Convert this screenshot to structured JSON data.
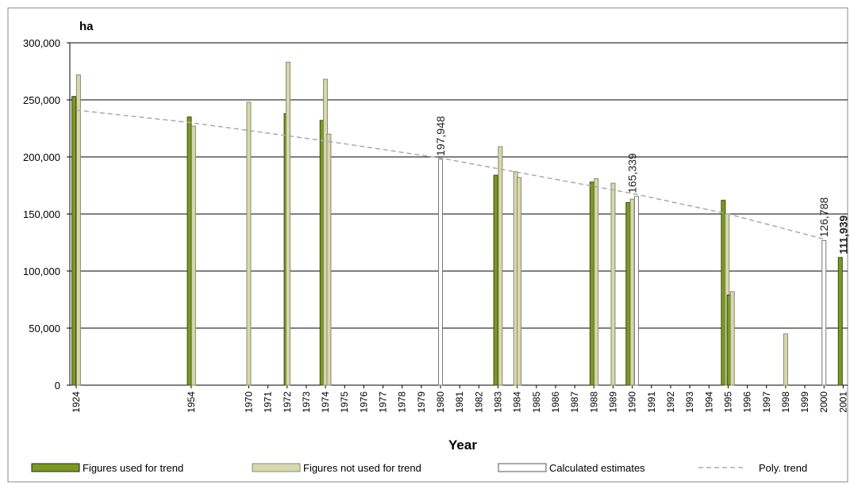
{
  "chart_data": {
    "type": "bar",
    "ylabel": "ha",
    "xlabel": "Year",
    "ylim": [
      0,
      300000
    ],
    "y_ticks": [
      "0",
      "50,000",
      "100,000",
      "150,000",
      "200,000",
      "250,000",
      "300,000"
    ],
    "y_tick_values": [
      0,
      50000,
      100000,
      150000,
      200000,
      250000,
      300000
    ],
    "grid": true,
    "legend_position": "bottom",
    "categories": [
      "1924",
      "1954",
      "1970",
      "1971",
      "1972",
      "1973",
      "1974",
      "1975",
      "1976",
      "1977",
      "1978",
      "1979",
      "1980",
      "1981",
      "1982",
      "1983",
      "1984",
      "1985",
      "1986",
      "1987",
      "1988",
      "1989",
      "1990",
      "1991",
      "1992",
      "1993",
      "1994",
      "1995",
      "1996",
      "1997",
      "1998",
      "1999",
      "2000",
      "2001"
    ],
    "category_positions": [
      0,
      6,
      9,
      10,
      11,
      12,
      13,
      14,
      15,
      16,
      17,
      18,
      19,
      20,
      21,
      22,
      23,
      24,
      25,
      26,
      27,
      28,
      29,
      30,
      31,
      32,
      33,
      34,
      35,
      36,
      37,
      38,
      39,
      40
    ],
    "series": [
      {
        "name": "Figures used for trend",
        "color": "#7a9a1f"
      },
      {
        "name": "Figures not used for trend",
        "color": "#d8d8b0"
      },
      {
        "name": "Calculated estimates",
        "color": "#ffffff"
      },
      {
        "name": "Poly. trend",
        "color": "#aaaaaa"
      }
    ],
    "bars": [
      {
        "year": "1924",
        "offset": -0.12,
        "value": 253000,
        "series": 0
      },
      {
        "year": "1924",
        "offset": 0.12,
        "value": 272000,
        "series": 1
      },
      {
        "year": "1954",
        "offset": -0.1,
        "value": 235000,
        "series": 0
      },
      {
        "year": "1954",
        "offset": 0.12,
        "value": 227000,
        "series": 1
      },
      {
        "year": "1970",
        "offset": 0,
        "value": 248000,
        "series": 1
      },
      {
        "year": "1972",
        "offset": -0.05,
        "value": 238000,
        "series": 0
      },
      {
        "year": "1972",
        "offset": 0.05,
        "value": 283000,
        "series": 1
      },
      {
        "year": "1974",
        "offset": -0.18,
        "value": 232000,
        "series": 0
      },
      {
        "year": "1974",
        "offset": 0,
        "value": 268000,
        "series": 1
      },
      {
        "year": "1974",
        "offset": 0.18,
        "value": 220000,
        "series": 1
      },
      {
        "year": "1980",
        "offset": 0,
        "value": 197948,
        "series": 2
      },
      {
        "year": "1983",
        "offset": -0.12,
        "value": 184000,
        "series": 0
      },
      {
        "year": "1983",
        "offset": 0.12,
        "value": 209000,
        "series": 1
      },
      {
        "year": "1984",
        "offset": -0.08,
        "value": 187000,
        "series": 1
      },
      {
        "year": "1984",
        "offset": 0.1,
        "value": 182000,
        "series": 1
      },
      {
        "year": "1988",
        "offset": -0.1,
        "value": 178000,
        "series": 0
      },
      {
        "year": "1988",
        "offset": 0.12,
        "value": 181000,
        "series": 1
      },
      {
        "year": "1989",
        "offset": 0,
        "value": 177000,
        "series": 1
      },
      {
        "year": "1990",
        "offset": -0.22,
        "value": 160000,
        "series": 0
      },
      {
        "year": "1990",
        "offset": 0,
        "value": 163000,
        "series": 1
      },
      {
        "year": "1990",
        "offset": 0.22,
        "value": 165339,
        "series": 2
      },
      {
        "year": "1995",
        "offset": -0.25,
        "value": 162000,
        "series": 0
      },
      {
        "year": "1995",
        "offset": -0.05,
        "value": 150000,
        "series": 1
      },
      {
        "year": "1995",
        "offset": 0.05,
        "value": 79000,
        "series": 0
      },
      {
        "year": "1995",
        "offset": 0.22,
        "value": 82000,
        "series": 1
      },
      {
        "year": "1998",
        "offset": 0,
        "value": 45000,
        "series": 1
      },
      {
        "year": "2000",
        "offset": 0,
        "value": 126788,
        "series": 2
      },
      {
        "year": "2001",
        "offset": -0.15,
        "value": 111939,
        "series": 0
      }
    ],
    "trend": [
      [
        0,
        241000
      ],
      [
        6,
        230000
      ],
      [
        13,
        214000
      ],
      [
        19,
        199000
      ],
      [
        29,
        168000
      ],
      [
        34,
        150000
      ],
      [
        39,
        128000
      ]
    ],
    "annotations": [
      {
        "year": "1980",
        "value": 197948,
        "text": "197,948",
        "bold": false
      },
      {
        "year": "1990",
        "value": 165339,
        "text": "165,339",
        "bold": false
      },
      {
        "year": "2000",
        "value": 126788,
        "text": "126,788",
        "bold": false
      },
      {
        "year": "2001",
        "value": 111939,
        "text": "111,939",
        "bold": true
      }
    ]
  }
}
